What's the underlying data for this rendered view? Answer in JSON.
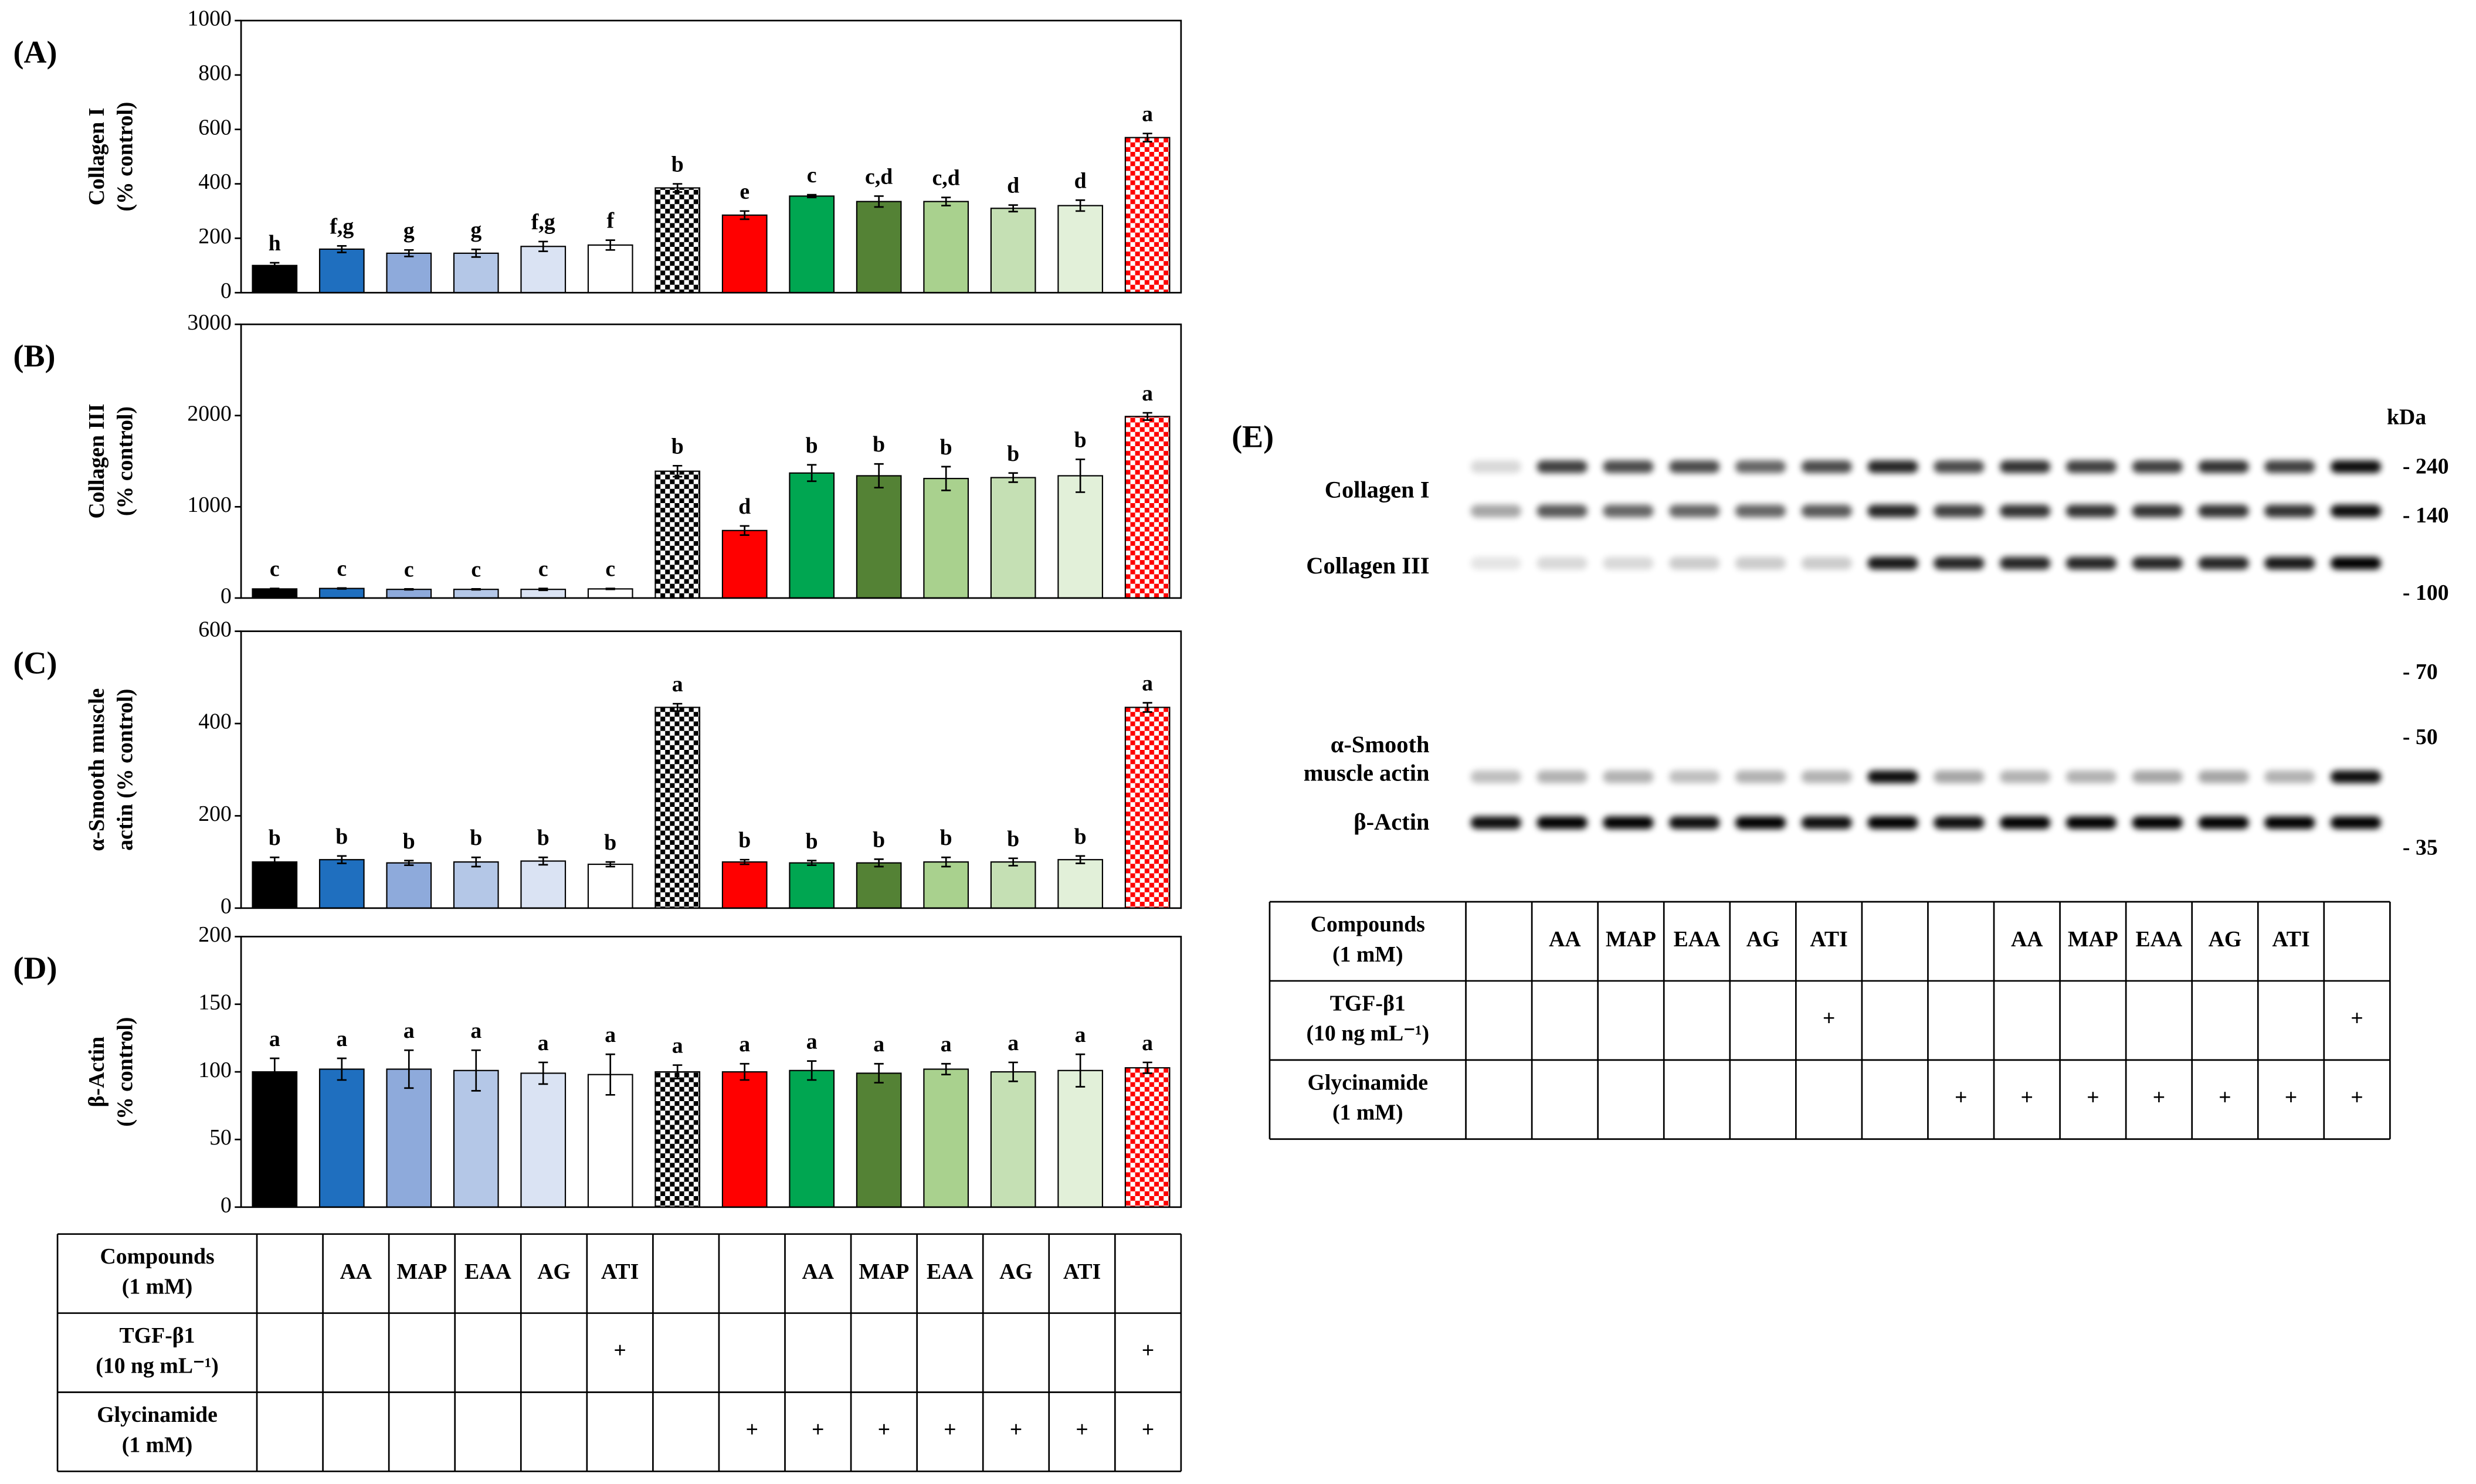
{
  "chart_data": [
    {
      "type": "bar",
      "panel": "(A)",
      "ylabel": [
        "Collagen I",
        "(% control)"
      ],
      "categories": [
        null,
        null,
        null,
        null,
        null,
        null,
        null,
        null,
        null,
        null,
        null,
        null,
        null,
        null
      ],
      "values": [
        100,
        160,
        145,
        145,
        170,
        175,
        385,
        285,
        355,
        335,
        335,
        310,
        320,
        570
      ],
      "errors": [
        10,
        12,
        12,
        14,
        18,
        18,
        15,
        15,
        5,
        20,
        15,
        12,
        20,
        15
      ],
      "annotations": [
        "h",
        "f,g",
        "g",
        "g",
        "f,g",
        "f",
        "b",
        "e",
        "c",
        "c,d",
        "c,d",
        "d",
        "d",
        "a"
      ],
      "ylim": [
        0,
        1000
      ],
      "yticks": [
        0,
        200,
        400,
        600,
        800,
        1000
      ],
      "grid": false
    },
    {
      "type": "bar",
      "panel": "(B)",
      "ylabel": [
        "Collagen III",
        "(% control)"
      ],
      "categories": [
        null,
        null,
        null,
        null,
        null,
        null,
        null,
        null,
        null,
        null,
        null,
        null,
        null,
        null
      ],
      "values": [
        100,
        105,
        95,
        95,
        95,
        100,
        1390,
        740,
        1370,
        1340,
        1310,
        1320,
        1340,
        1990
      ],
      "errors": [
        5,
        5,
        5,
        5,
        10,
        5,
        60,
        50,
        90,
        130,
        130,
        50,
        180,
        40
      ],
      "annotations": [
        "c",
        "c",
        "c",
        "c",
        "c",
        "c",
        "b",
        "d",
        "b",
        "b",
        "b",
        "b",
        "b",
        "a"
      ],
      "ylim": [
        0,
        3000
      ],
      "yticks": [
        0,
        1000,
        2000,
        3000
      ],
      "grid": false
    },
    {
      "type": "bar",
      "panel": "(C)",
      "ylabel": [
        "α-Smooth muscle",
        "actin (% control)"
      ],
      "categories": [
        null,
        null,
        null,
        null,
        null,
        null,
        null,
        null,
        null,
        null,
        null,
        null,
        null,
        null
      ],
      "values": [
        100,
        105,
        98,
        100,
        102,
        95,
        435,
        100,
        98,
        98,
        100,
        100,
        105,
        435
      ],
      "errors": [
        10,
        8,
        5,
        10,
        8,
        5,
        8,
        5,
        5,
        8,
        10,
        8,
        8,
        10
      ],
      "annotations": [
        "b",
        "b",
        "b",
        "b",
        "b",
        "b",
        "a",
        "b",
        "b",
        "b",
        "b",
        "b",
        "b",
        "a"
      ],
      "ylim": [
        0,
        600
      ],
      "yticks": [
        0,
        200,
        400,
        600
      ],
      "grid": false
    },
    {
      "type": "bar",
      "panel": "(D)",
      "ylabel": [
        "β-Actin",
        "(% control)"
      ],
      "categories": [
        null,
        null,
        null,
        null,
        null,
        null,
        null,
        null,
        null,
        null,
        null,
        null,
        null,
        null
      ],
      "values": [
        100,
        102,
        102,
        101,
        99,
        98,
        100,
        100,
        101,
        99,
        102,
        100,
        101,
        103
      ],
      "errors": [
        10,
        8,
        14,
        15,
        8,
        15,
        5,
        6,
        7,
        7,
        4,
        7,
        12,
        4
      ],
      "annotations": [
        "a",
        "a",
        "a",
        "a",
        "a",
        "a",
        "a",
        "a",
        "a",
        "a",
        "a",
        "a",
        "a",
        "a"
      ],
      "ylim": [
        0,
        200
      ],
      "yticks": [
        0,
        50,
        100,
        150,
        200
      ],
      "grid": false
    }
  ],
  "bar_colors": [
    "#000000",
    "#1f6fbf",
    "#8eaadb",
    "#b4c7e7",
    "#dae3f3",
    "#ffffff",
    "#000000",
    "#ff0000",
    "#00a651",
    "#548235",
    "#a9d18e",
    "#c5e0b4",
    "#e2f0d9",
    "#ff0000"
  ],
  "checkered": [
    6,
    13
  ],
  "table": {
    "rows": [
      {
        "label": [
          "Compounds",
          "(1 mM)"
        ],
        "cells": [
          null,
          "AA",
          "MAP",
          "EAA",
          "AG",
          "ATI",
          null,
          null,
          "AA",
          "MAP",
          "EAA",
          "AG",
          "ATI",
          null
        ]
      },
      {
        "label": [
          "TGF-β1",
          "(10 ng mL⁻¹)"
        ],
        "cells": [
          null,
          null,
          null,
          null,
          null,
          "+",
          null,
          null,
          null,
          null,
          null,
          null,
          null,
          "+"
        ]
      },
      {
        "label": [
          "Glycinamide",
          "(1 mM)"
        ],
        "cells": [
          null,
          null,
          null,
          null,
          null,
          null,
          null,
          "+",
          "+",
          "+",
          "+",
          "+",
          "+",
          "+"
        ]
      }
    ]
  },
  "blot": {
    "panel": "(E)",
    "unit": "kDa",
    "markers": [
      "- 240",
      "- 140",
      "- 100",
      "- 70",
      "- 50",
      "- 35"
    ],
    "proteins": [
      [
        "Collagen I"
      ],
      [
        "Collagen III"
      ],
      [
        "α-Smooth",
        "muscle actin"
      ],
      [
        "β-Actin"
      ]
    ]
  }
}
